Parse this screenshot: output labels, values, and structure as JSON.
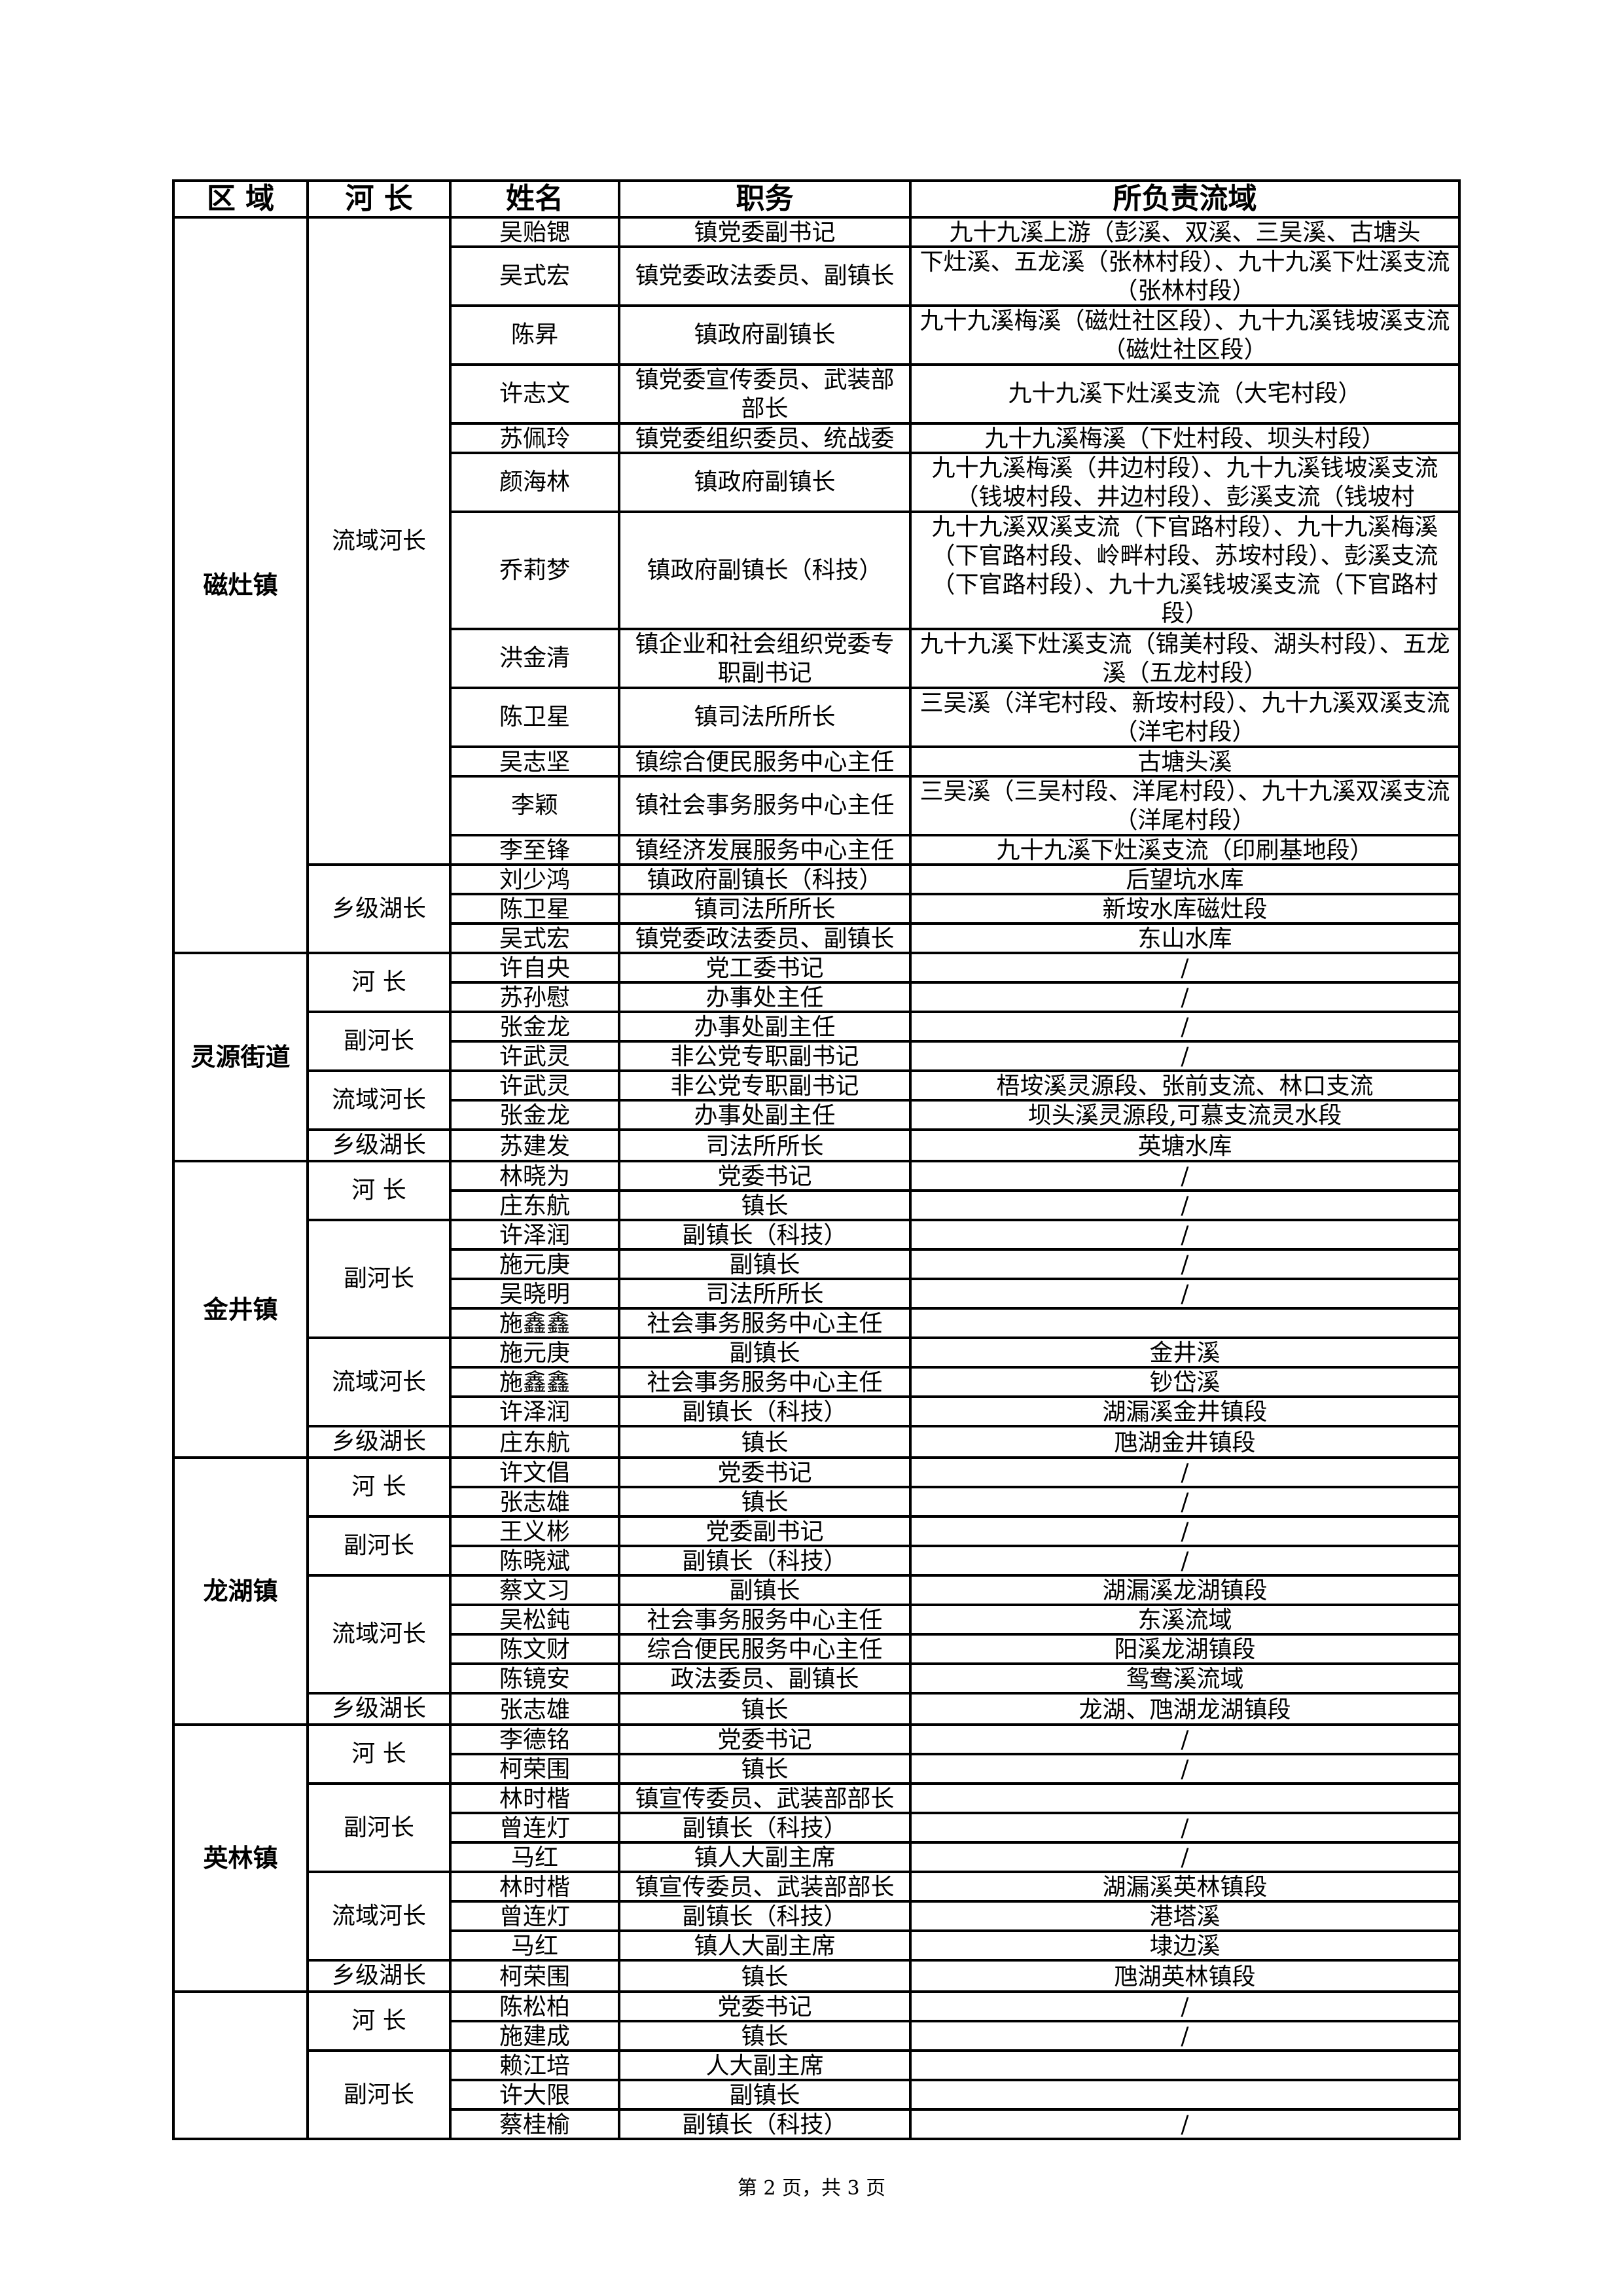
{
  "header": {
    "region": "区 域",
    "chief": "河 长",
    "name": "姓名",
    "position": "职务",
    "area": "所负责流域"
  },
  "regions": [
    {
      "label": "磁灶镇",
      "groups": [
        {
          "label": "流域河长",
          "members": [
            {
              "name": "吴贻锶",
              "position": "镇党委副书记",
              "area": "九十九溪上游（彭溪、双溪、三吴溪、古塘头"
            },
            {
              "name": "吴式宏",
              "position": "镇党委政法委员、副镇长",
              "area": "下灶溪、五龙溪（张林村段）、九十九溪下灶溪支流（张林村段）"
            },
            {
              "name": "陈昇",
              "position": "镇政府副镇长",
              "area": "九十九溪梅溪（磁灶社区段）、九十九溪钱坡溪支流（磁灶社区段）"
            },
            {
              "name": "许志文",
              "position": "镇党委宣传委员、武装部部长",
              "area": "九十九溪下灶溪支流（大宅村段）"
            },
            {
              "name": "苏佩玲",
              "position": "镇党委组织委员、统战委",
              "area": "九十九溪梅溪（下灶村段、坝头村段）"
            },
            {
              "name": "颜海林",
              "position": "镇政府副镇长",
              "area": "九十九溪梅溪（井边村段）、九十九溪钱坡溪支流（钱坡村段、井边村段）、彭溪支流（钱坡村"
            },
            {
              "name": "乔莉梦",
              "position": "镇政府副镇长（科技）",
              "area": "九十九溪双溪支流（下官路村段）、九十九溪梅溪（下官路村段、岭畔村段、苏垵村段）、彭溪支流（下官路村段）、九十九溪钱坡溪支流（下官路村段）"
            },
            {
              "name": "洪金清",
              "position": "镇企业和社会组织党委专职副书记",
              "area": "九十九溪下灶溪支流（锦美村段、湖头村段）、五龙溪（五龙村段）"
            },
            {
              "name": "陈卫星",
              "position": "镇司法所所长",
              "area": "三吴溪（洋宅村段、新垵村段）、九十九溪双溪支流（洋宅村段）"
            },
            {
              "name": "吴志坚",
              "position": "镇综合便民服务中心主任",
              "area": "古塘头溪"
            },
            {
              "name": "李颖",
              "position": "镇社会事务服务中心主任",
              "area": "三吴溪（三吴村段、洋尾村段）、九十九溪双溪支流（洋尾村段）"
            },
            {
              "name": "李至锋",
              "position": "镇经济发展服务中心主任",
              "area": "九十九溪下灶溪支流（印刷基地段）"
            }
          ]
        },
        {
          "label": "乡级湖长",
          "members": [
            {
              "name": "刘少鸿",
              "position": "镇政府副镇长（科技）",
              "area": "后望坑水库"
            },
            {
              "name": "陈卫星",
              "position": "镇司法所所长",
              "area": "新垵水库磁灶段"
            },
            {
              "name": "吴式宏",
              "position": "镇党委政法委员、副镇长",
              "area": "东山水库"
            }
          ]
        }
      ]
    },
    {
      "label": "灵源街道",
      "groups": [
        {
          "label": "河 长",
          "members": [
            {
              "name": "许自央",
              "position": "党工委书记",
              "area": "/"
            },
            {
              "name": "苏孙慰",
              "position": "办事处主任",
              "area": "/"
            }
          ]
        },
        {
          "label": "副河长",
          "members": [
            {
              "name": "张金龙",
              "position": "办事处副主任",
              "area": "/"
            },
            {
              "name": "许武灵",
              "position": "非公党专职副书记",
              "area": "/"
            }
          ]
        },
        {
          "label": "流域河长",
          "members": [
            {
              "name": "许武灵",
              "position": "非公党专职副书记",
              "area": "梧垵溪灵源段、张前支流、林口支流"
            },
            {
              "name": "张金龙",
              "position": "办事处副主任",
              "area": "坝头溪灵源段,可慕支流灵水段"
            }
          ]
        },
        {
          "label": "乡级湖长",
          "members": [
            {
              "name": "苏建发",
              "position": "司法所所长",
              "area": "英塘水库"
            }
          ]
        }
      ]
    },
    {
      "label": "金井镇",
      "groups": [
        {
          "label": "河 长",
          "members": [
            {
              "name": "林晓为",
              "position": "党委书记",
              "area": "/"
            },
            {
              "name": "庄东航",
              "position": "镇长",
              "area": "/"
            }
          ]
        },
        {
          "label": "副河长",
          "members": [
            {
              "name": "许泽润",
              "position": "副镇长（科技）",
              "area": "/"
            },
            {
              "name": "施元庚",
              "position": "副镇长",
              "area": "/"
            },
            {
              "name": "吴晓明",
              "position": "司法所所长",
              "area": "/"
            },
            {
              "name": "施鑫鑫",
              "position": "社会事务服务中心主任",
              "area": ""
            }
          ]
        },
        {
          "label": "流域河长",
          "members": [
            {
              "name": "施元庚",
              "position": "副镇长",
              "area": "金井溪"
            },
            {
              "name": "施鑫鑫",
              "position": "社会事务服务中心主任",
              "area": "钞岱溪"
            },
            {
              "name": "许泽润",
              "position": "副镇长（科技）",
              "area": "湖漏溪金井镇段"
            }
          ]
        },
        {
          "label": "乡级湖长",
          "members": [
            {
              "name": "庄东航",
              "position": "镇长",
              "area": "虺湖金井镇段"
            }
          ]
        }
      ]
    },
    {
      "label": "龙湖镇",
      "groups": [
        {
          "label": "河 长",
          "members": [
            {
              "name": "许文倡",
              "position": "党委书记",
              "area": "/"
            },
            {
              "name": "张志雄",
              "position": "镇长",
              "area": "/"
            }
          ]
        },
        {
          "label": "副河长",
          "members": [
            {
              "name": "王义彬",
              "position": "党委副书记",
              "area": "/"
            },
            {
              "name": "陈晓斌",
              "position": "副镇长（科技）",
              "area": "/"
            }
          ]
        },
        {
          "label": "流域河长",
          "members": [
            {
              "name": "蔡文习",
              "position": "副镇长",
              "area": "湖漏溪龙湖镇段"
            },
            {
              "name": "吴松鈍",
              "position": "社会事务服务中心主任",
              "area": "东溪流域"
            },
            {
              "name": "陈文财",
              "position": "综合便民服务中心主任",
              "area": "阳溪龙湖镇段"
            },
            {
              "name": "陈镜安",
              "position": "政法委员、副镇长",
              "area": "鸳鸯溪流域"
            }
          ]
        },
        {
          "label": "乡级湖长",
          "members": [
            {
              "name": "张志雄",
              "position": "镇长",
              "area": "龙湖、虺湖龙湖镇段"
            }
          ]
        }
      ]
    },
    {
      "label": "英林镇",
      "groups": [
        {
          "label": "河 长",
          "members": [
            {
              "name": "李德铭",
              "position": "党委书记",
              "area": "/"
            },
            {
              "name": "柯荣围",
              "position": "镇长",
              "area": "/"
            }
          ]
        },
        {
          "label": "副河长",
          "members": [
            {
              "name": "林时楷",
              "position": "镇宣传委员、武装部部长",
              "area": ""
            },
            {
              "name": "曾连灯",
              "position": "副镇长（科技）",
              "area": "/"
            },
            {
              "name": "马红",
              "position": "镇人大副主席",
              "area": "/"
            }
          ]
        },
        {
          "label": "流域河长",
          "members": [
            {
              "name": "林时楷",
              "position": "镇宣传委员、武装部部长",
              "area": "湖漏溪英林镇段"
            },
            {
              "name": "曾连灯",
              "position": "副镇长（科技）",
              "area": "港塔溪"
            },
            {
              "name": "马红",
              "position": "镇人大副主席",
              "area": "埭边溪"
            }
          ]
        },
        {
          "label": "乡级湖长",
          "members": [
            {
              "name": "柯荣围",
              "position": "镇长",
              "area": "虺湖英林镇段"
            }
          ]
        }
      ]
    },
    {
      "label": "",
      "groups": [
        {
          "label": "河 长",
          "members": [
            {
              "name": "陈松柏",
              "position": "党委书记",
              "area": "/"
            },
            {
              "name": "施建成",
              "position": "镇长",
              "area": "/"
            }
          ]
        },
        {
          "label": "副河长",
          "members": [
            {
              "name": "赖江培",
              "position": "人大副主席",
              "area": ""
            },
            {
              "name": "许大限",
              "position": "副镇长",
              "area": ""
            },
            {
              "name": "蔡桂榆",
              "position": "副镇长（科技）",
              "area": "/"
            }
          ]
        }
      ]
    }
  ],
  "footer": {
    "page_number": "第 2 页，共 3 页"
  }
}
